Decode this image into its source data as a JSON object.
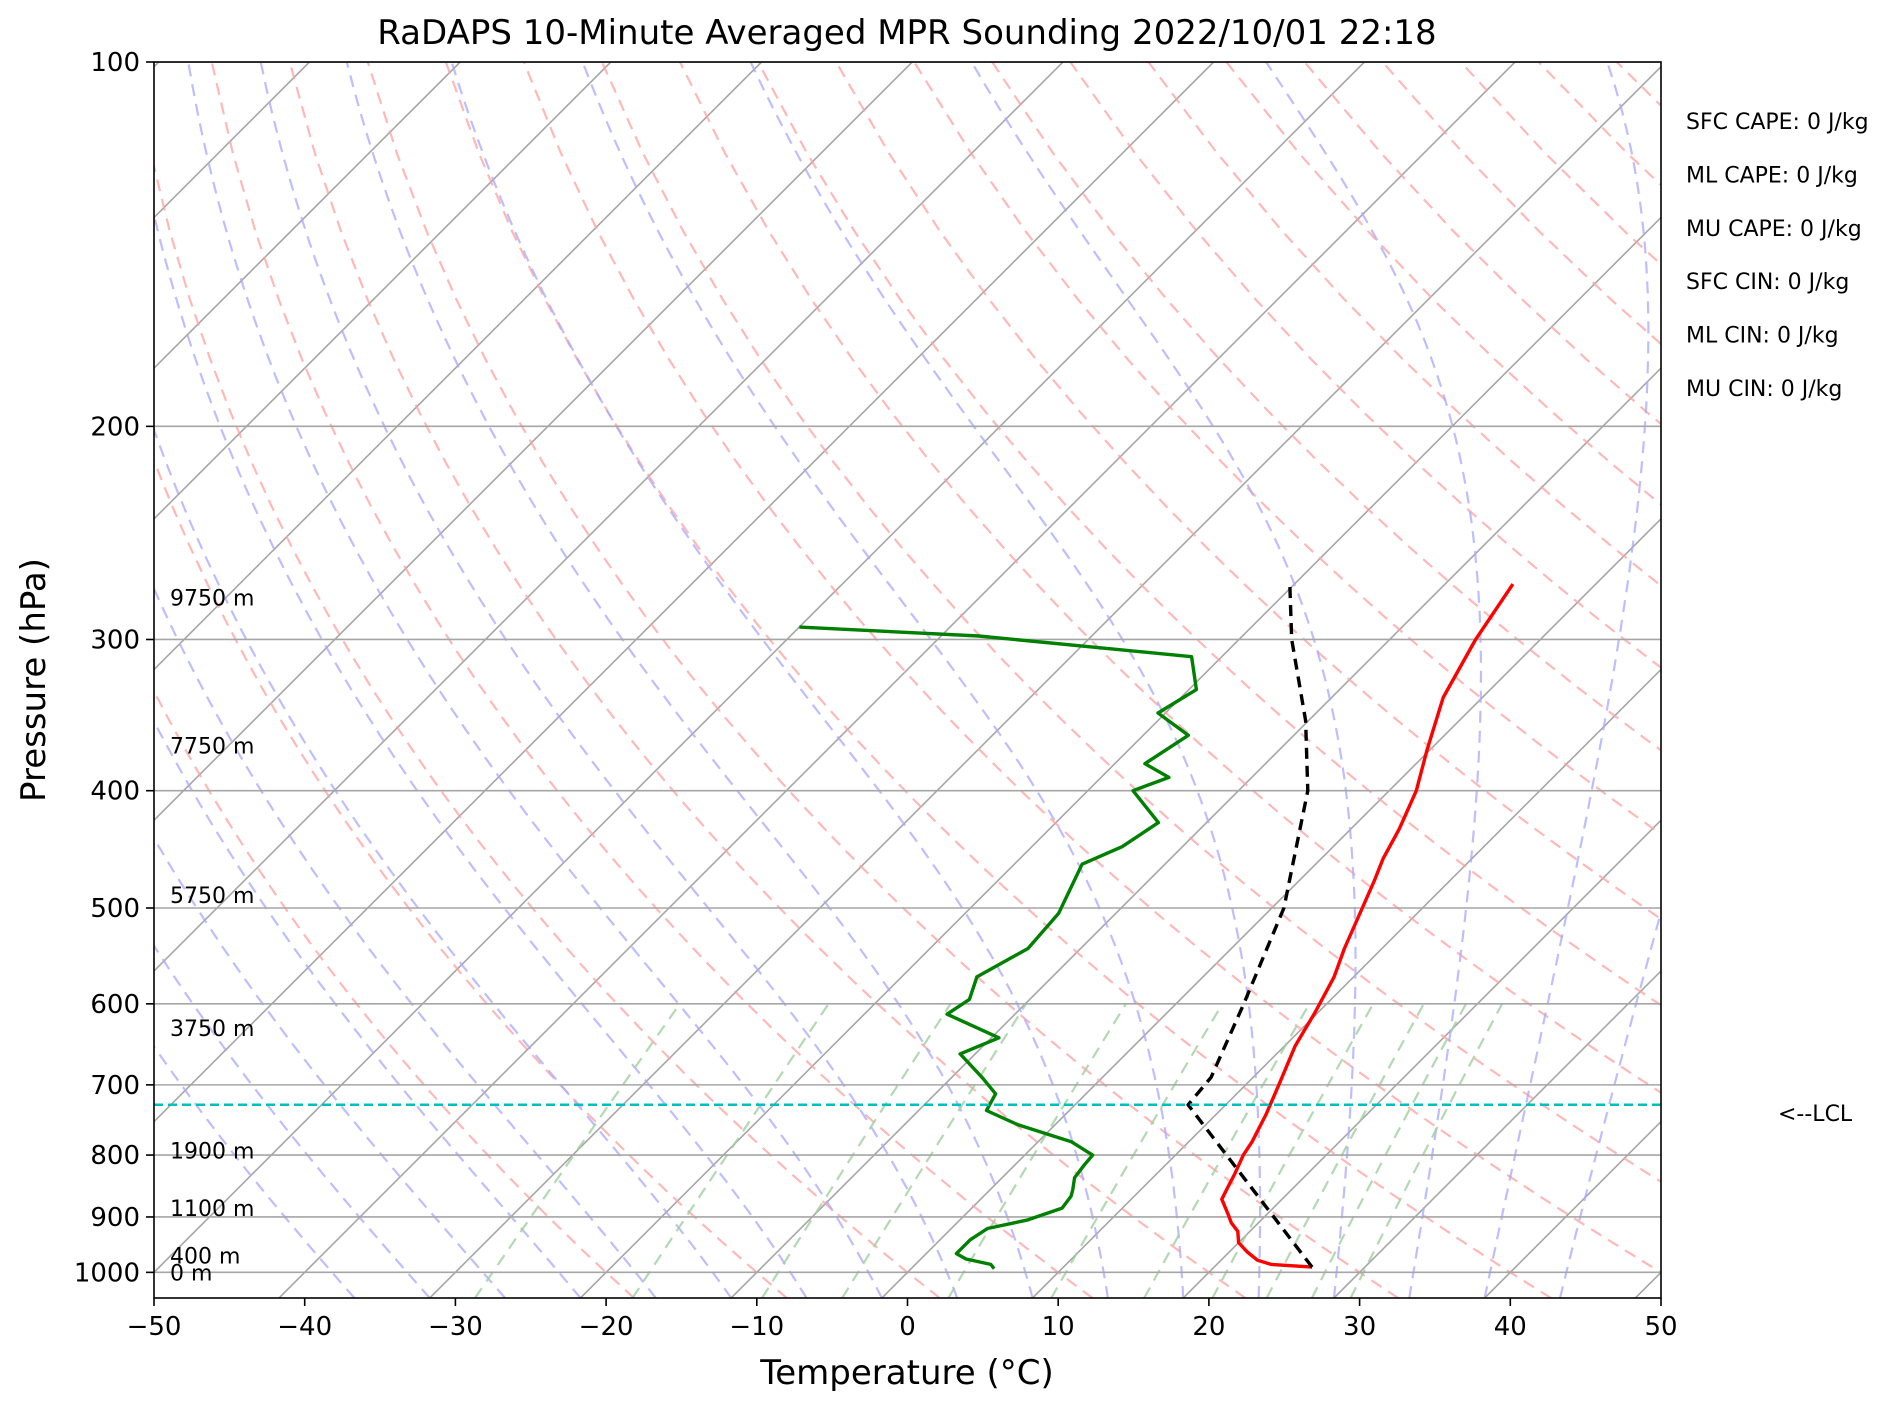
{
  "chart_data": {
    "type": "line",
    "subtype": "skew-T log-p sounding",
    "title": "RaDAPS 10-Minute Averaged MPR Sounding 2022/10/01 22:18",
    "xlabel": "Temperature (°C)",
    "ylabel": "Pressure (hPa)",
    "xlim": [
      -50,
      50
    ],
    "ylim": [
      1050,
      100
    ],
    "y_scale": "log",
    "x_ticks": [
      -50,
      -40,
      -30,
      -20,
      -10,
      0,
      10,
      20,
      30,
      40,
      50
    ],
    "x_tick_labels": [
      "−50",
      "−40",
      "−30",
      "−20",
      "−10",
      "0",
      "10",
      "20",
      "30",
      "40",
      "50"
    ],
    "y_ticks": [
      100,
      200,
      300,
      400,
      500,
      600,
      700,
      800,
      900,
      1000
    ],
    "y_tick_labels": [
      "100",
      "200",
      "300",
      "400",
      "500",
      "600",
      "700",
      "800",
      "900",
      "1000"
    ],
    "grid": true,
    "background_lines": {
      "isotherms": {
        "color": "#a6a6a6",
        "style": "solid"
      },
      "dry_adiabats": {
        "color": "#ffa0a0",
        "style": "dashed"
      },
      "moist_adiabats": {
        "color": "#a8a8ff",
        "style": "dashed"
      },
      "mixing_ratio_lines": {
        "color": "#9fd09f",
        "style": "dashed",
        "top_pressure": 600
      }
    },
    "series": [
      {
        "id": "temperature",
        "color": "#ff0000",
        "points": [
          [
            990,
            26.5
          ],
          [
            985,
            23.6
          ],
          [
            977,
            22.4
          ],
          [
            962,
            21.2
          ],
          [
            945,
            20.0
          ],
          [
            925,
            19.2
          ],
          [
            910,
            18.2
          ],
          [
            895,
            17.4
          ],
          [
            870,
            16.0
          ],
          [
            850,
            15.6
          ],
          [
            830,
            15.2
          ],
          [
            800,
            14.5
          ],
          [
            780,
            14.2
          ],
          [
            740,
            13.3
          ],
          [
            700,
            12.2
          ],
          [
            650,
            10.7
          ],
          [
            610,
            9.8
          ],
          [
            570,
            8.7
          ],
          [
            540,
            7.5
          ],
          [
            500,
            6.0
          ],
          [
            475,
            5.0
          ],
          [
            455,
            4.1
          ],
          [
            430,
            3.2
          ],
          [
            400,
            1.8
          ],
          [
            370,
            -0.2
          ],
          [
            335,
            -2.6
          ],
          [
            300,
            -4.3
          ],
          [
            270,
            -5.5
          ]
        ]
      },
      {
        "id": "dewpoint",
        "color": "#008000",
        "points": [
          [
            993,
            5.5
          ],
          [
            985,
            5.0
          ],
          [
            975,
            3.0
          ],
          [
            965,
            2.0
          ],
          [
            950,
            2.0
          ],
          [
            940,
            2.0
          ],
          [
            920,
            2.4
          ],
          [
            905,
            4.5
          ],
          [
            885,
            6.0
          ],
          [
            865,
            5.8
          ],
          [
            855,
            5.5
          ],
          [
            835,
            4.8
          ],
          [
            815,
            4.6
          ],
          [
            800,
            4.5
          ],
          [
            780,
            2.2
          ],
          [
            755,
            -2.5
          ],
          [
            735,
            -5.5
          ],
          [
            712,
            -6.0
          ],
          [
            690,
            -8.0
          ],
          [
            660,
            -11.0
          ],
          [
            640,
            -9.5
          ],
          [
            612,
            -14.5
          ],
          [
            595,
            -14.0
          ],
          [
            570,
            -15.0
          ],
          [
            540,
            -13.5
          ],
          [
            505,
            -13.8
          ],
          [
            460,
            -15.5
          ],
          [
            445,
            -14.0
          ],
          [
            425,
            -13.2
          ],
          [
            400,
            -17.0
          ],
          [
            390,
            -15.5
          ],
          [
            380,
            -18.0
          ],
          [
            360,
            -17.0
          ],
          [
            345,
            -20.5
          ],
          [
            330,
            -19.5
          ],
          [
            310,
            -22.0
          ],
          [
            298,
            -37.5
          ],
          [
            293,
            -50.0
          ]
        ]
      },
      {
        "id": "parcel",
        "color": "#000000",
        "style": "dashed",
        "points": [
          [
            990,
            26.5
          ],
          [
            727,
            7.5
          ],
          [
            690,
            7.2
          ],
          [
            600,
            4.5
          ],
          [
            500,
            0.8
          ],
          [
            400,
            -5.4
          ],
          [
            350,
            -10.2
          ],
          [
            300,
            -16.5
          ],
          [
            270,
            -20.3
          ]
        ]
      }
    ],
    "lcl": {
      "label": "<--LCL",
      "pressure": 727,
      "color": "#00bfbf"
    },
    "height_labels": [
      {
        "label": "9750 m",
        "pressure": 277
      },
      {
        "label": "7750 m",
        "pressure": 367
      },
      {
        "label": "5750 m",
        "pressure": 488
      },
      {
        "label": "3750 m",
        "pressure": 628
      },
      {
        "label": "1900 m",
        "pressure": 793
      },
      {
        "label": "1100 m",
        "pressure": 885
      },
      {
        "label": "400 m",
        "pressure": 968
      },
      {
        "label": "0 m",
        "pressure": 1000
      }
    ],
    "indices": [
      "SFC CAPE: 0 J/kg",
      "ML CAPE: 0 J/kg",
      "MU CAPE: 0 J/kg",
      "SFC CIN: 0 J/kg",
      "ML CIN: 0 J/kg",
      "MU CIN: 0 J/kg"
    ]
  }
}
